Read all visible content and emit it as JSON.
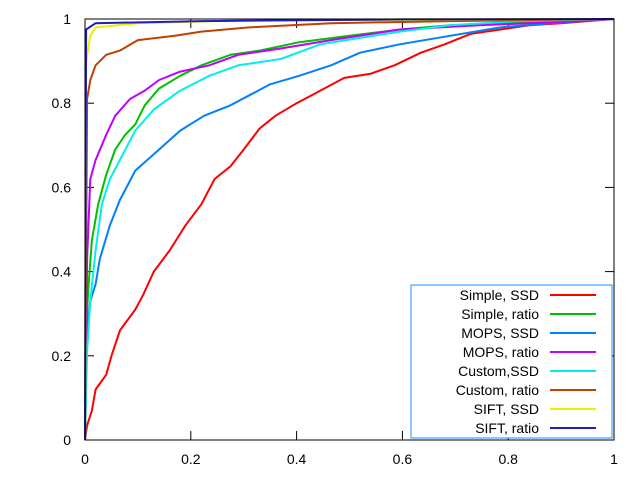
{
  "chart_data": {
    "type": "line",
    "title": "",
    "xlabel": "",
    "ylabel": "",
    "xlim": [
      0,
      1
    ],
    "ylim": [
      0,
      1
    ],
    "grid": false,
    "legend_position": "bottom-right",
    "legend_border_color": "#1e8fff",
    "xticks": [
      "0",
      "0.2",
      "0.4",
      "0.6",
      "0.8",
      "1"
    ],
    "yticks": [
      "0",
      "0.2",
      "0.4",
      "0.6",
      "0.8",
      "1"
    ],
    "series": [
      {
        "name": "Simple, SSD",
        "color": "#ff0000",
        "x": [
          0,
          0.004,
          0.013,
          0.02,
          0.04,
          0.05,
          0.066,
          0.095,
          0.11,
          0.13,
          0.16,
          0.19,
          0.22,
          0.245,
          0.275,
          0.3,
          0.33,
          0.36,
          0.4,
          0.445,
          0.49,
          0.54,
          0.585,
          0.635,
          0.68,
          0.73,
          0.785,
          0.84,
          0.9,
          1
        ],
        "y": [
          0,
          0.035,
          0.07,
          0.12,
          0.155,
          0.2,
          0.26,
          0.31,
          0.345,
          0.4,
          0.45,
          0.51,
          0.56,
          0.62,
          0.65,
          0.69,
          0.74,
          0.77,
          0.8,
          0.83,
          0.86,
          0.87,
          0.89,
          0.92,
          0.94,
          0.965,
          0.975,
          0.985,
          0.99,
          1
        ]
      },
      {
        "name": "Simple, ratio",
        "color": "#00c000",
        "x": [
          0,
          0.002,
          0.006,
          0.013,
          0.025,
          0.04,
          0.057,
          0.076,
          0.095,
          0.113,
          0.14,
          0.18,
          0.22,
          0.275,
          0.33,
          0.405,
          0.5,
          0.595,
          0.69,
          0.785,
          1
        ],
        "y": [
          0,
          0.26,
          0.355,
          0.475,
          0.56,
          0.63,
          0.69,
          0.725,
          0.75,
          0.795,
          0.835,
          0.865,
          0.89,
          0.915,
          0.925,
          0.945,
          0.96,
          0.975,
          0.985,
          0.99,
          1
        ]
      },
      {
        "name": "MOPS, SSD",
        "color": "#0080ff",
        "x": [
          0,
          0.004,
          0.01,
          0.02,
          0.028,
          0.047,
          0.066,
          0.095,
          0.14,
          0.18,
          0.225,
          0.275,
          0.35,
          0.405,
          0.465,
          0.52,
          0.595,
          0.69,
          0.785,
          0.88,
          1
        ],
        "y": [
          0,
          0.26,
          0.33,
          0.37,
          0.43,
          0.51,
          0.57,
          0.64,
          0.69,
          0.735,
          0.77,
          0.795,
          0.845,
          0.865,
          0.89,
          0.92,
          0.94,
          0.96,
          0.98,
          0.99,
          1
        ]
      },
      {
        "name": "MOPS, ratio",
        "color": "#c000ff",
        "x": [
          0,
          0.002,
          0.004,
          0.01,
          0.02,
          0.04,
          0.057,
          0.085,
          0.113,
          0.14,
          0.18,
          0.235,
          0.29,
          0.37,
          0.465,
          0.595,
          0.745,
          0.935,
          1
        ],
        "y": [
          0,
          0.21,
          0.43,
          0.62,
          0.665,
          0.725,
          0.77,
          0.81,
          0.83,
          0.855,
          0.875,
          0.89,
          0.915,
          0.93,
          0.95,
          0.975,
          0.985,
          0.995,
          1
        ]
      },
      {
        "name": "Custom,SSD",
        "color": "#00eeee",
        "x": [
          0,
          0.004,
          0.01,
          0.02,
          0.032,
          0.047,
          0.066,
          0.095,
          0.13,
          0.18,
          0.235,
          0.29,
          0.37,
          0.445,
          0.52,
          0.595,
          0.69,
          0.82,
          1
        ],
        "y": [
          0,
          0.21,
          0.33,
          0.45,
          0.56,
          0.62,
          0.665,
          0.735,
          0.785,
          0.83,
          0.865,
          0.89,
          0.905,
          0.94,
          0.955,
          0.97,
          0.985,
          0.995,
          1
        ]
      },
      {
        "name": "Custom, ratio",
        "color": "#c04000",
        "x": [
          0,
          0.002,
          0.004,
          0.01,
          0.02,
          0.04,
          0.066,
          0.1,
          0.17,
          0.22,
          0.31,
          0.465,
          0.69,
          1
        ],
        "y": [
          0,
          0.43,
          0.81,
          0.855,
          0.89,
          0.915,
          0.925,
          0.95,
          0.96,
          0.97,
          0.98,
          0.99,
          0.995,
          1
        ]
      },
      {
        "name": "SIFT, SSD",
        "color": "#eeee00",
        "x": [
          0,
          0.002,
          0.01,
          0.02,
          0.1,
          0.31,
          1
        ],
        "y": [
          0,
          0.9,
          0.96,
          0.98,
          0.99,
          0.997,
          1
        ]
      },
      {
        "name": "SIFT, ratio",
        "color": "#2020c0",
        "x": [
          0,
          0.002,
          0.02,
          0.22,
          0.6,
          1
        ],
        "y": [
          0,
          0.975,
          0.99,
          0.995,
          0.999,
          1
        ]
      }
    ]
  }
}
